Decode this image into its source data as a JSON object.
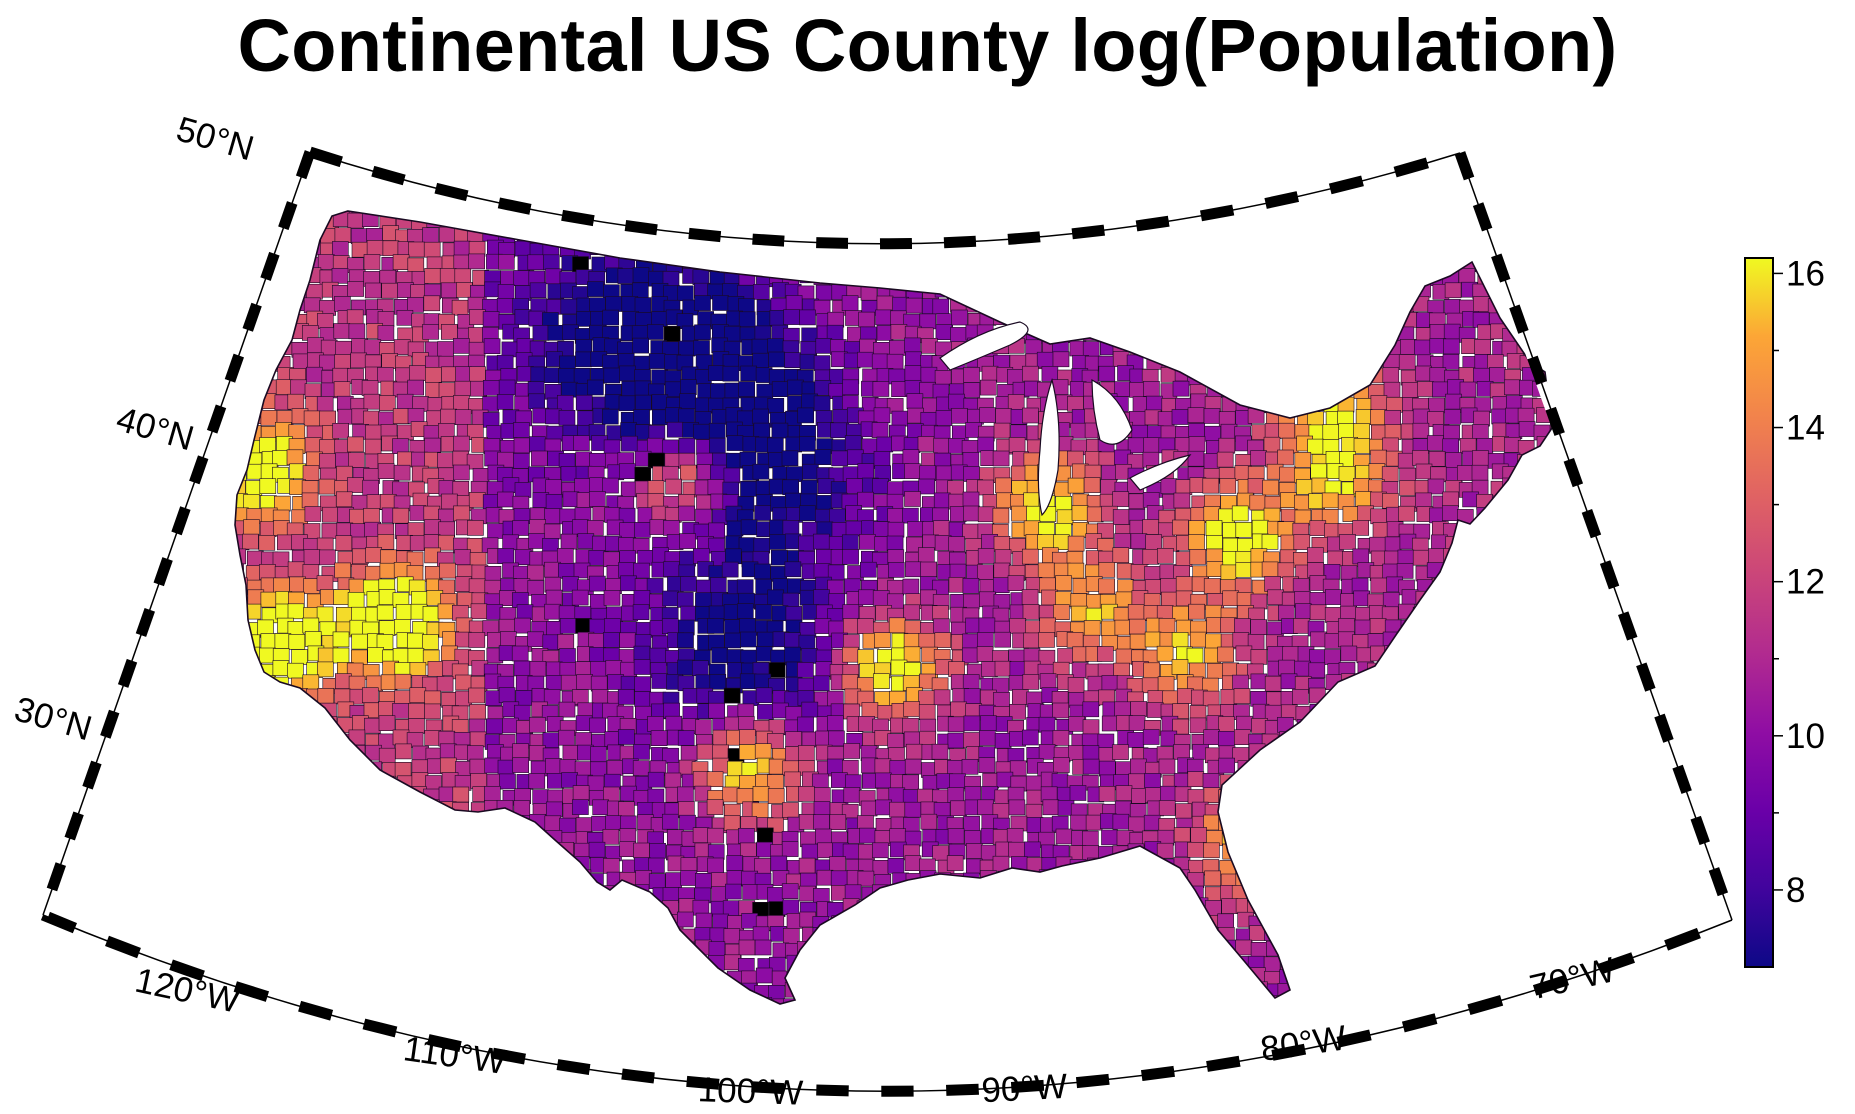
{
  "title": "Continental US County log(Population)",
  "map": {
    "projection": "albers-conic",
    "colormap": "plasma",
    "latitude_labels": [
      "50°N",
      "40°N",
      "30°N"
    ],
    "longitude_labels": [
      "120°W",
      "110°W",
      "100°W",
      "90°W",
      "80°W",
      "70°W"
    ]
  },
  "colorbar": {
    "range": [
      7,
      16.2
    ],
    "tick_labels": [
      "8",
      "10",
      "12",
      "14",
      "16"
    ]
  },
  "colors": {
    "no_data": "#000000",
    "county_border": "#1a0a22",
    "frame_dark": "#000000",
    "frame_light": "#ffffff"
  }
}
